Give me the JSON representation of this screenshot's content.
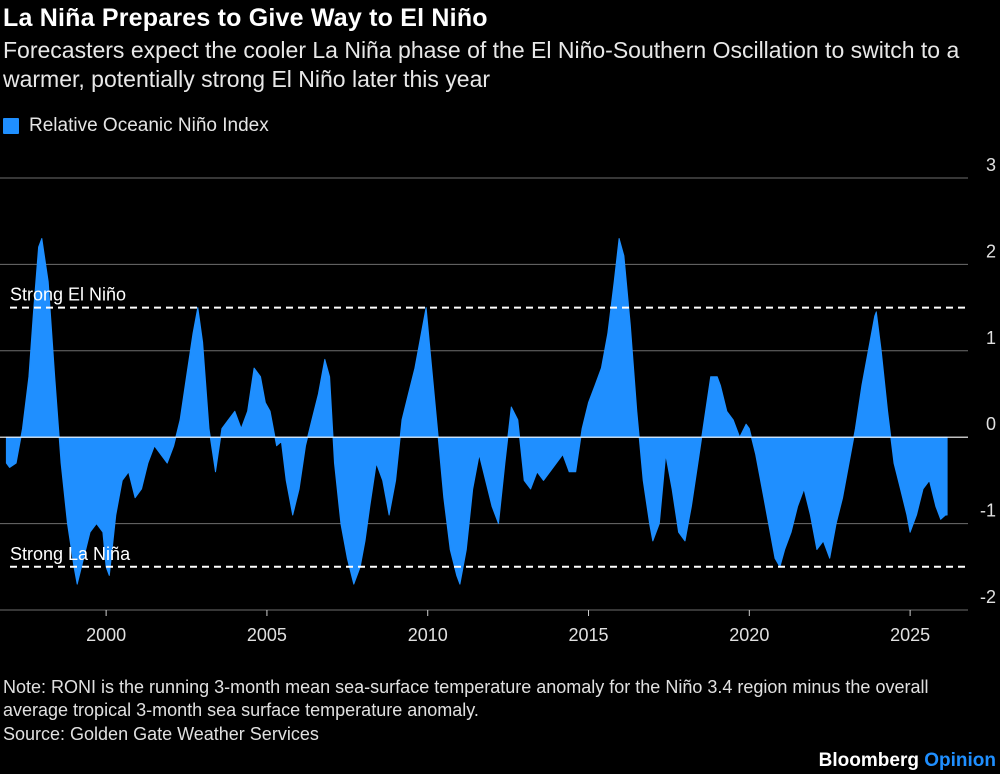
{
  "title": "La Niña Prepares to Give Way to El Niño",
  "subtitle": "Forecasters expect the cooler La Niña phase of the El Niño-Southern Oscillation to switch to a warmer, potentially strong El Niño later this year",
  "note": "Note: RONI is the running 3-month mean sea-surface temperature anomaly for the Niño 3.4 region minus the overall average tropical 3-month sea surface temperature anomaly.",
  "source": "Source: Golden Gate Weather Services",
  "brand": {
    "name": "Bloomberg",
    "suffix": "Opinion"
  },
  "colors": {
    "series": "#1f8fff",
    "background": "#000000",
    "grid": "#6e6e6e",
    "threshold": "#ffffff",
    "brand_accent": "#1f8fff"
  },
  "chart_data": {
    "type": "area",
    "title": "La Niña Prepares to Give Way to El Niño",
    "series": [
      {
        "name": "Relative Oceanic Niño Index",
        "x": [
          1996.9,
          1997.0,
          1997.2,
          1997.4,
          1997.6,
          1997.75,
          1997.9,
          1998.0,
          1998.2,
          1998.4,
          1998.6,
          1998.8,
          1999.0,
          1999.1,
          1999.3,
          1999.5,
          1999.7,
          1999.9,
          2000.0,
          2000.1,
          2000.3,
          2000.5,
          2000.7,
          2000.9,
          2001.1,
          2001.3,
          2001.5,
          2001.7,
          2001.9,
          2002.1,
          2002.3,
          2002.5,
          2002.7,
          2002.85,
          2003.0,
          2003.2,
          2003.4,
          2003.6,
          2003.8,
          2004.0,
          2004.2,
          2004.4,
          2004.6,
          2004.8,
          2004.95,
          2005.1,
          2005.3,
          2005.45,
          2005.6,
          2005.8,
          2006.0,
          2006.2,
          2006.4,
          2006.6,
          2006.8,
          2006.95,
          2007.1,
          2007.3,
          2007.5,
          2007.7,
          2007.9,
          2008.05,
          2008.2,
          2008.4,
          2008.6,
          2008.8,
          2009.0,
          2009.2,
          2009.4,
          2009.6,
          2009.8,
          2009.95,
          2010.1,
          2010.3,
          2010.5,
          2010.7,
          2010.9,
          2011.0,
          2011.2,
          2011.4,
          2011.6,
          2011.8,
          2012.0,
          2012.2,
          2012.4,
          2012.6,
          2012.8,
          2013.0,
          2013.2,
          2013.4,
          2013.6,
          2013.8,
          2014.0,
          2014.2,
          2014.4,
          2014.6,
          2014.8,
          2015.0,
          2015.2,
          2015.4,
          2015.6,
          2015.8,
          2015.95,
          2016.1,
          2016.3,
          2016.5,
          2016.7,
          2016.9,
          2017.0,
          2017.2,
          2017.4,
          2017.6,
          2017.8,
          2018.0,
          2018.2,
          2018.4,
          2018.6,
          2018.8,
          2019.0,
          2019.1,
          2019.3,
          2019.5,
          2019.7,
          2019.9,
          2020.0,
          2020.2,
          2020.4,
          2020.6,
          2020.8,
          2020.95,
          2021.1,
          2021.3,
          2021.5,
          2021.7,
          2021.9,
          2022.1,
          2022.3,
          2022.5,
          2022.7,
          2022.9,
          2023.1,
          2023.3,
          2023.5,
          2023.7,
          2023.9,
          2023.95,
          2024.1,
          2024.3,
          2024.5,
          2024.7,
          2024.9,
          2025.0,
          2025.2,
          2025.4,
          2025.6,
          2025.8,
          2025.95,
          2026.1,
          2026.15
        ],
        "y": [
          -0.3,
          -0.35,
          -0.3,
          0.1,
          0.7,
          1.5,
          2.2,
          2.3,
          1.8,
          0.7,
          -0.3,
          -1.0,
          -1.5,
          -1.7,
          -1.4,
          -1.1,
          -1.0,
          -1.1,
          -1.5,
          -1.6,
          -0.9,
          -0.5,
          -0.4,
          -0.7,
          -0.6,
          -0.3,
          -0.1,
          -0.2,
          -0.3,
          -0.1,
          0.2,
          0.7,
          1.2,
          1.5,
          1.1,
          0.1,
          -0.4,
          0.1,
          0.2,
          0.3,
          0.1,
          0.3,
          0.8,
          0.7,
          0.4,
          0.3,
          -0.1,
          -0.05,
          -0.5,
          -0.9,
          -0.6,
          -0.1,
          0.2,
          0.5,
          0.9,
          0.7,
          -0.3,
          -1.0,
          -1.4,
          -1.7,
          -1.5,
          -1.2,
          -0.8,
          -0.3,
          -0.5,
          -0.9,
          -0.5,
          0.2,
          0.5,
          0.8,
          1.2,
          1.5,
          0.9,
          0.1,
          -0.7,
          -1.3,
          -1.6,
          -1.7,
          -1.3,
          -0.6,
          -0.2,
          -0.5,
          -0.8,
          -1.0,
          -0.3,
          0.35,
          0.2,
          -0.5,
          -0.6,
          -0.4,
          -0.5,
          -0.4,
          -0.3,
          -0.2,
          -0.4,
          -0.4,
          0.1,
          0.4,
          0.6,
          0.8,
          1.2,
          1.8,
          2.3,
          2.1,
          1.3,
          0.3,
          -0.5,
          -1.0,
          -1.2,
          -1.0,
          -0.2,
          -0.6,
          -1.1,
          -1.2,
          -0.8,
          -0.3,
          0.2,
          0.7,
          0.7,
          0.6,
          0.3,
          0.2,
          0.0,
          0.15,
          0.1,
          -0.2,
          -0.6,
          -1.0,
          -1.4,
          -1.5,
          -1.3,
          -1.1,
          -0.8,
          -0.6,
          -0.9,
          -1.3,
          -1.2,
          -1.4,
          -1.0,
          -0.7,
          -0.3,
          0.1,
          0.6,
          1.0,
          1.4,
          1.45,
          1.0,
          0.3,
          -0.3,
          -0.6,
          -0.9,
          -1.1,
          -0.9,
          -0.6,
          -0.5,
          -0.8,
          -0.95,
          -0.9,
          -0.9
        ]
      }
    ],
    "thresholds": [
      {
        "label": "Strong El Niño",
        "value": 1.5
      },
      {
        "label": "Strong La Niña",
        "value": -1.5
      }
    ],
    "xlabel": "",
    "ylabel": "",
    "xlim": [
      1996.7,
      2026.8
    ],
    "ylim": [
      -2,
      3
    ],
    "x_ticks": [
      2000,
      2005,
      2010,
      2015,
      2020,
      2025
    ],
    "y_ticks": [
      3,
      2,
      1,
      0,
      -1,
      -2
    ],
    "grid": true,
    "legend": "top-left",
    "y_axis_side": "right"
  }
}
